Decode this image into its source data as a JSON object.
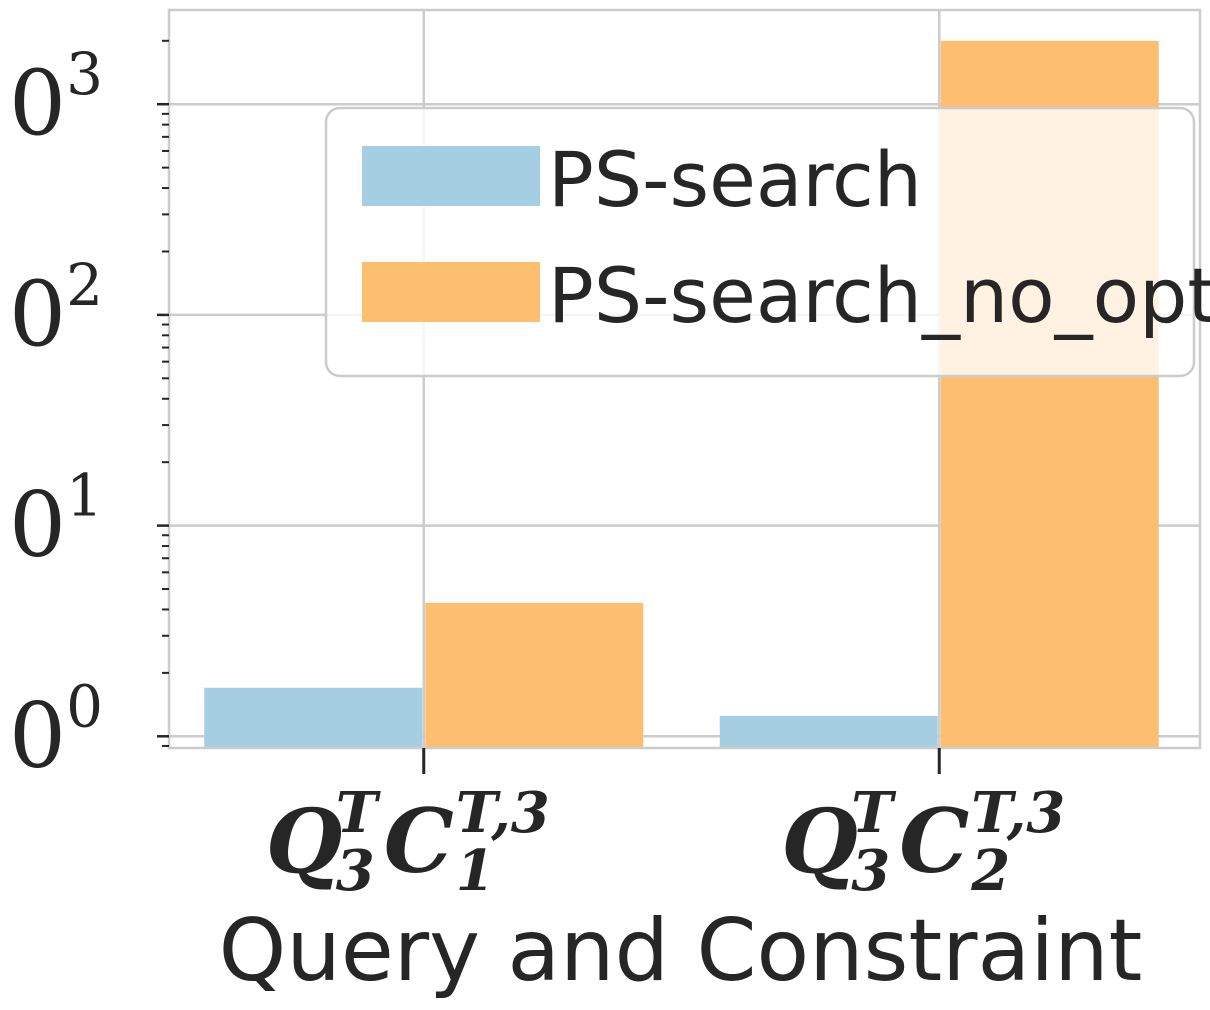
{
  "chart_data": {
    "type": "bar",
    "categories": [
      {
        "base": "Q",
        "sup1": "T",
        "sub1": "3",
        "base2": "C",
        "sup2": "T,3",
        "sub2": "1"
      },
      {
        "base": "Q",
        "sup1": "T",
        "sub1": "3",
        "base2": "C",
        "sup2": "T,3",
        "sub2": "2"
      }
    ],
    "series": [
      {
        "name": "PS-search",
        "color": "#a6cee3",
        "values": [
          1.7,
          1.25
        ]
      },
      {
        "name": "PS-search_no_opt",
        "color": "#fdbf6f",
        "values": [
          4.3,
          2000
        ]
      }
    ],
    "xlabel": "Query and Constraint",
    "ylabel": "",
    "yscale": "log",
    "ylim": [
      0.88,
      2800
    ],
    "yticks": [
      {
        "base": "10",
        "exp": "0",
        "value": 1
      },
      {
        "base": "10",
        "exp": "1",
        "value": 10
      },
      {
        "base": "10",
        "exp": "2",
        "value": 100
      },
      {
        "base": "10",
        "exp": "3",
        "value": 1000
      }
    ],
    "grid": true,
    "legend_position": "top-right",
    "colors": {
      "grid": "#cccccc",
      "text": "#262626",
      "spine": "#cccccc"
    }
  }
}
